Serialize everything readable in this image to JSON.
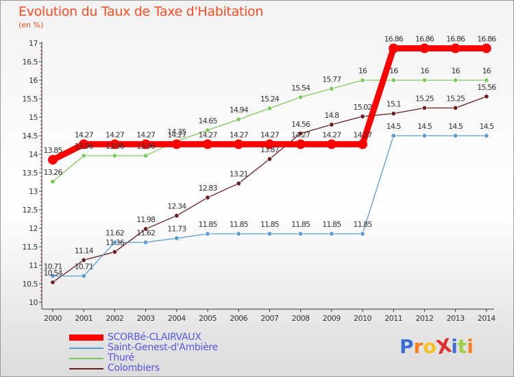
{
  "chart_data": {
    "type": "line",
    "title": "Evolution du Taux de Taxe d'Habitation",
    "unit_label": "(en %)",
    "categories": [
      "2000",
      "2001",
      "2002",
      "2003",
      "2004",
      "2005",
      "2006",
      "2007",
      "2008",
      "2009",
      "2010",
      "2011",
      "2012",
      "2013",
      "2014"
    ],
    "ylim": [
      10,
      17
    ],
    "yticks": [
      "10",
      "10.5",
      "11",
      "11.5",
      "12",
      "12.5",
      "13",
      "13.5",
      "14",
      "14.5",
      "15",
      "15.5",
      "16",
      "16.5",
      "17"
    ],
    "grid": false,
    "legend_position": "bottom-left",
    "series": [
      {
        "name": "Colombiers",
        "color": "#6b1c1c",
        "values": [
          10.54,
          11.14,
          11.36,
          11.98,
          12.34,
          12.83,
          13.21,
          13.87,
          14.56,
          14.8,
          15.02,
          15.1,
          15.25,
          15.25,
          15.56
        ],
        "labels": [
          "10.54",
          "11.14",
          "11.36",
          "11.98",
          "12.34",
          "12.83",
          "13.21",
          "13.87",
          "14.56",
          "14.8",
          "15.02",
          "15.1",
          "15.25",
          "15.25",
          "15.56"
        ]
      },
      {
        "name": "Thuré",
        "color": "#7dc95e",
        "values": [
          13.26,
          13.96,
          13.96,
          13.96,
          14.35,
          14.65,
          14.94,
          15.24,
          15.54,
          15.77,
          16,
          16,
          16,
          16,
          16
        ],
        "labels": [
          "13.26",
          "13.96",
          "13.96",
          "13.96",
          "14.35",
          "14.65",
          "14.94",
          "15.24",
          "15.54",
          "15.77",
          "16",
          "16",
          "16",
          "16",
          "16"
        ]
      },
      {
        "name": "Saint-Genest-d'Ambière",
        "color": "#5b9bd0",
        "values": [
          10.71,
          10.71,
          11.62,
          11.62,
          11.73,
          11.85,
          11.85,
          11.85,
          11.85,
          11.85,
          11.85,
          14.5,
          14.5,
          14.5,
          14.5
        ],
        "labels": [
          "10.71",
          "10.71",
          "11.62",
          "11.62",
          "11.73",
          "11.85",
          "11.85",
          "11.85",
          "11.85",
          "11.85",
          "11.85",
          "14.5",
          "14.5",
          "14.5",
          "14.5"
        ]
      },
      {
        "name": "SCORBé-CLAIRVAUX",
        "color": "#ff0000",
        "values": [
          13.85,
          14.27,
          14.27,
          14.27,
          14.27,
          14.27,
          14.27,
          14.27,
          14.27,
          14.27,
          14.27,
          16.86,
          16.86,
          16.86,
          16.86
        ],
        "labels": [
          "13.85",
          "14.27",
          "14.27",
          "14.27",
          "14.27",
          "14.27",
          "14.27",
          "14.27",
          "14.27",
          "14.27",
          "14.27",
          "16.86",
          "16.86",
          "16.86",
          "16.86"
        ]
      }
    ],
    "legend": [
      {
        "name": "SCORBé-CLAIRVAUX",
        "color": "#ff0000",
        "thick": true
      },
      {
        "name": "Saint-Genest-d'Ambière",
        "color": "#5b9bd0",
        "thick": false
      },
      {
        "name": "Thuré",
        "color": "#7dc95e",
        "thick": false
      },
      {
        "name": "Colombiers",
        "color": "#6b1c1c",
        "thick": false
      }
    ]
  },
  "logo": {
    "text": "ProXiti",
    "colors": [
      "#3a6fd6",
      "#ff7a1a",
      "#f4c21f",
      "#e23030",
      "#3a6fd6",
      "#9ad13d",
      "#ff7a1a"
    ]
  }
}
